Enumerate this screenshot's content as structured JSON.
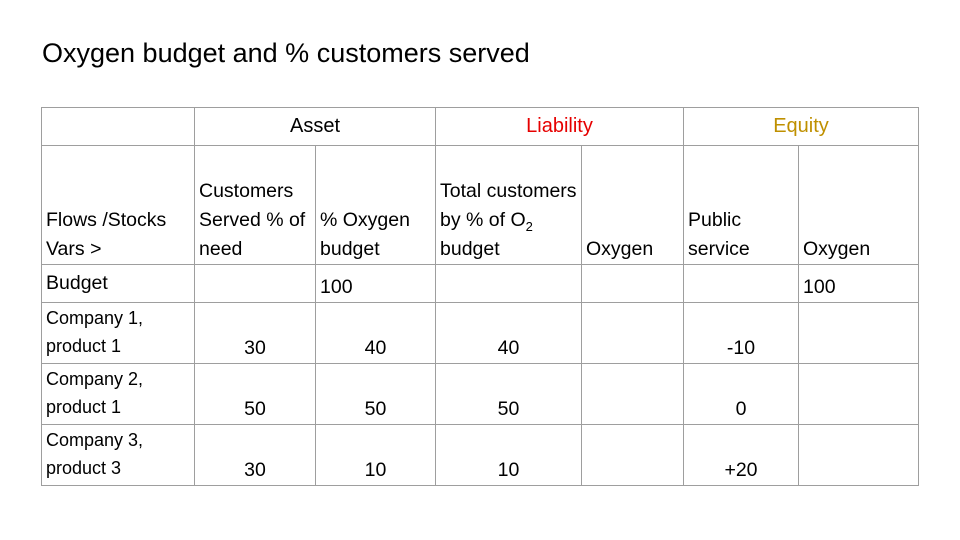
{
  "title": "Oxygen budget and % customers served",
  "header": {
    "groups": {
      "asset": "Asset",
      "liability": "Liability",
      "equity": "Equity"
    },
    "columns": {
      "flows_stocks": "Flows /Stocks Vars >",
      "customers_served": "Customers Served % of need",
      "oxygen_budget_pct": "% Oxygen budget",
      "total_customers_pre": "Total customers by % of O",
      "total_customers_sub": "2",
      "total_customers_post": " budget",
      "liability_oxygen": "Oxygen",
      "public_service": "Public service",
      "equity_oxygen": "Oxygen"
    }
  },
  "rows": [
    {
      "label": "Budget",
      "customers_served": "",
      "oxygen_budget_pct": "100",
      "total_customers": "",
      "liability_oxygen": "",
      "public_service": "",
      "equity_oxygen": "100"
    },
    {
      "label": "Company 1, product 1",
      "customers_served": "30",
      "oxygen_budget_pct": "40",
      "total_customers": "40",
      "liability_oxygen": "",
      "public_service": "-10",
      "equity_oxygen": ""
    },
    {
      "label": "Company 2, product 1",
      "customers_served": "50",
      "oxygen_budget_pct": "50",
      "total_customers": "50",
      "liability_oxygen": "",
      "public_service": "0",
      "equity_oxygen": ""
    },
    {
      "label": "Company 3, product 3",
      "customers_served": "30",
      "oxygen_budget_pct": "10",
      "total_customers": "10",
      "liability_oxygen": "",
      "public_service": "+20",
      "equity_oxygen": ""
    }
  ],
  "colors": {
    "liability": "#e60000",
    "equity": "#bf9000",
    "border": "#9e9e9e"
  }
}
